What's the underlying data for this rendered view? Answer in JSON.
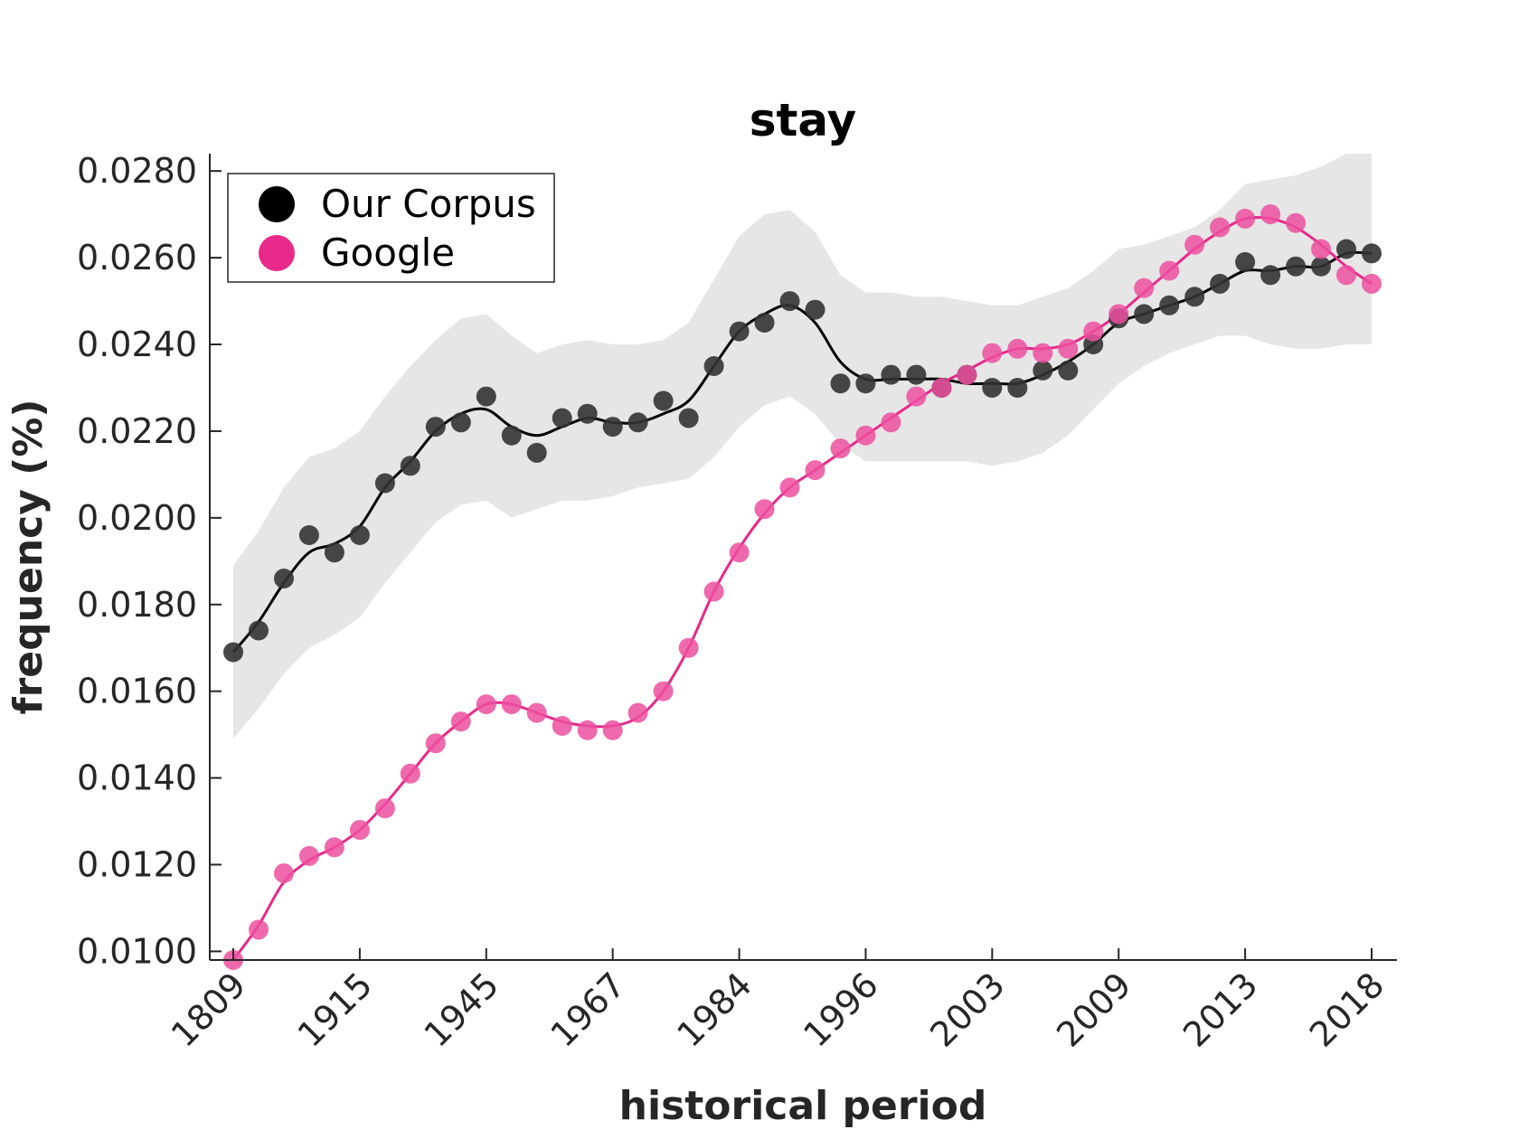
{
  "chart_data": {
    "type": "line",
    "title": "stay",
    "xlabel": "historical period",
    "ylabel": "frequency (%)",
    "ylim": [
      0.0098,
      0.0284
    ],
    "yticks": [
      "0.0100",
      "0.0120",
      "0.0140",
      "0.0160",
      "0.0180",
      "0.0200",
      "0.0220",
      "0.0240",
      "0.0260",
      "0.0280"
    ],
    "ytick_values": [
      0.01,
      0.012,
      0.014,
      0.016,
      0.018,
      0.02,
      0.022,
      0.024,
      0.026,
      0.028
    ],
    "xtick_labels": [
      "1809",
      "1915",
      "1945",
      "1967",
      "1984",
      "1996",
      "2003",
      "2009",
      "2013",
      "2018"
    ],
    "xtick_positions": [
      1,
      6,
      11,
      16,
      21,
      26,
      31,
      36,
      41,
      46
    ],
    "x": [
      1,
      2,
      3,
      4,
      5,
      6,
      7,
      8,
      9,
      10,
      11,
      12,
      13,
      14,
      15,
      16,
      17,
      18,
      19,
      20,
      21,
      22,
      23,
      24,
      25,
      26,
      27,
      28,
      29,
      30,
      31,
      32,
      33,
      34,
      35,
      36,
      37,
      38,
      39,
      40,
      41,
      42,
      43,
      44,
      45,
      46
    ],
    "legend_position": "top-left",
    "grid": false,
    "series": [
      {
        "name": "Our Corpus",
        "color": "#000000",
        "marker_color": "#333333",
        "points": [
          0.0169,
          0.0174,
          0.0186,
          0.0196,
          0.0192,
          0.0196,
          0.0208,
          0.0212,
          0.0221,
          0.0222,
          0.0228,
          0.0219,
          0.0215,
          0.0223,
          0.0224,
          0.0221,
          0.0222,
          0.0227,
          0.0223,
          0.0235,
          0.0243,
          0.0245,
          0.025,
          0.0248,
          0.0231,
          0.0231,
          0.0233,
          0.0233,
          0.023,
          0.0233,
          0.023,
          0.023,
          0.0234,
          0.0234,
          0.024,
          0.0246,
          0.0247,
          0.0249,
          0.0251,
          0.0254,
          0.0259,
          0.0256,
          0.0258,
          0.0258,
          0.0262,
          0.0261
        ],
        "trend": [
          0.0169,
          0.0176,
          0.0185,
          0.0192,
          0.0194,
          0.0198,
          0.0207,
          0.0213,
          0.022,
          0.0224,
          0.0225,
          0.0221,
          0.0219,
          0.0221,
          0.0223,
          0.0222,
          0.0222,
          0.0224,
          0.0227,
          0.0235,
          0.0243,
          0.0247,
          0.0249,
          0.0245,
          0.0236,
          0.0232,
          0.0232,
          0.0232,
          0.0232,
          0.0231,
          0.0231,
          0.0231,
          0.0233,
          0.0236,
          0.024,
          0.0245,
          0.0247,
          0.0249,
          0.0251,
          0.0254,
          0.0257,
          0.0257,
          0.0258,
          0.0258,
          0.0261,
          0.0261
        ],
        "band_upper": [
          0.0189,
          0.0197,
          0.0207,
          0.0214,
          0.0216,
          0.022,
          0.0228,
          0.0235,
          0.0241,
          0.0246,
          0.0247,
          0.0242,
          0.0238,
          0.024,
          0.0241,
          0.024,
          0.024,
          0.0241,
          0.0245,
          0.0255,
          0.0265,
          0.027,
          0.0271,
          0.0266,
          0.0256,
          0.0252,
          0.0252,
          0.0251,
          0.0251,
          0.025,
          0.0249,
          0.0249,
          0.0251,
          0.0253,
          0.0257,
          0.0262,
          0.0263,
          0.0265,
          0.0267,
          0.0271,
          0.0277,
          0.0278,
          0.0279,
          0.0281,
          0.0284,
          0.0284
        ],
        "band_lower": [
          0.0149,
          0.0156,
          0.0164,
          0.017,
          0.0173,
          0.0177,
          0.0185,
          0.0192,
          0.0199,
          0.0203,
          0.0204,
          0.02,
          0.0202,
          0.0204,
          0.0204,
          0.0205,
          0.0207,
          0.0208,
          0.0209,
          0.0214,
          0.0221,
          0.0226,
          0.0228,
          0.0224,
          0.0217,
          0.0213,
          0.0213,
          0.0213,
          0.0213,
          0.0213,
          0.0212,
          0.0213,
          0.0215,
          0.0219,
          0.0225,
          0.0231,
          0.0235,
          0.0238,
          0.024,
          0.0242,
          0.0242,
          0.024,
          0.0239,
          0.0239,
          0.024,
          0.024
        ]
      },
      {
        "name": "Google",
        "color": "#e7298a",
        "marker_color": "#ec4f9f",
        "points": [
          0.0098,
          0.0105,
          0.0118,
          0.0122,
          0.0124,
          0.0128,
          0.0133,
          0.0141,
          0.0148,
          0.0153,
          0.0157,
          0.0157,
          0.0155,
          0.0152,
          0.0151,
          0.0151,
          0.0155,
          0.016,
          0.017,
          0.0183,
          0.0192,
          0.0202,
          0.0207,
          0.0211,
          0.0216,
          0.0219,
          0.0222,
          0.0228,
          0.023,
          0.0233,
          0.0238,
          0.0239,
          0.0238,
          0.0239,
          0.0243,
          0.0247,
          0.0253,
          0.0257,
          0.0263,
          0.0267,
          0.0269,
          0.027,
          0.0268,
          0.0262,
          0.0256,
          0.0254
        ],
        "trend": [
          0.0098,
          0.0106,
          0.0116,
          0.0121,
          0.0124,
          0.0128,
          0.0134,
          0.0141,
          0.0148,
          0.0153,
          0.0157,
          0.0157,
          0.0155,
          0.0153,
          0.0152,
          0.0152,
          0.0154,
          0.016,
          0.017,
          0.0183,
          0.0193,
          0.0201,
          0.0207,
          0.0211,
          0.0215,
          0.0219,
          0.0223,
          0.0227,
          0.0231,
          0.0234,
          0.0237,
          0.0239,
          0.0239,
          0.024,
          0.0243,
          0.0247,
          0.0252,
          0.0257,
          0.0262,
          0.0266,
          0.0269,
          0.0269,
          0.0267,
          0.0263,
          0.0258,
          0.0254
        ]
      }
    ]
  }
}
